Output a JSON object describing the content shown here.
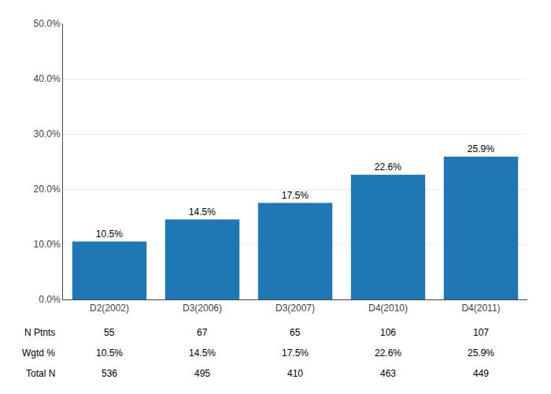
{
  "chart_data": {
    "type": "bar",
    "categories": [
      "D2(2002)",
      "D3(2006)",
      "D3(2007)",
      "D4(2010)",
      "D4(2011)"
    ],
    "values": [
      10.5,
      14.5,
      17.5,
      22.6,
      25.9
    ],
    "data_labels": true,
    "value_labels": [
      "10.5%",
      "14.5%",
      "17.5%",
      "22.6%",
      "25.9%"
    ],
    "ylim": [
      0,
      50
    ],
    "yticks": [
      {
        "value": 0,
        "label": "0.0%"
      },
      {
        "value": 10,
        "label": "10.0%"
      },
      {
        "value": 20,
        "label": "20.0%"
      },
      {
        "value": 30,
        "label": "30.0%"
      },
      {
        "value": 40,
        "label": "40.0%"
      },
      {
        "value": 50,
        "label": "50.0%"
      }
    ],
    "grid": true,
    "table": [
      {
        "name": "N Ptnts",
        "values": [
          55,
          67,
          65,
          106,
          107
        ]
      },
      {
        "name": "Wgtd %",
        "values": [
          10.5,
          14.5,
          17.5,
          22.6,
          25.9
        ],
        "value_labels": [
          "10.5%",
          "14.5%",
          "17.5%",
          "22.6%",
          "25.9%"
        ]
      },
      {
        "name": "Total N",
        "values": [
          536,
          495,
          410,
          463,
          449
        ]
      }
    ]
  }
}
